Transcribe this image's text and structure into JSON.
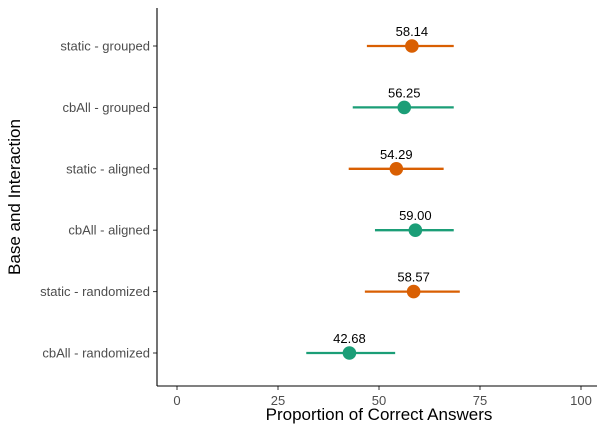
{
  "chart_data": {
    "type": "scatter",
    "subtype": "dot-with-error-bars",
    "orientation": "horizontal",
    "xlabel": "Proportion of Correct Answers",
    "ylabel": "Base and Interaction",
    "xlim": [
      0,
      100
    ],
    "xticks": [
      0,
      25,
      50,
      75,
      100
    ],
    "grid": false,
    "legend": "none",
    "categories": [
      "static - grouped",
      "cbAll - grouped",
      "static - aligned",
      "cbAll - aligned",
      "static - randomized",
      "cbAll - randomized"
    ],
    "points": [
      {
        "category": "static - grouped",
        "base": "static",
        "value": 58.14,
        "lower": 47.0,
        "upper": 68.5,
        "label": "58.14"
      },
      {
        "category": "cbAll - grouped",
        "base": "cbAll",
        "value": 56.25,
        "lower": 43.5,
        "upper": 68.5,
        "label": "56.25"
      },
      {
        "category": "static - aligned",
        "base": "static",
        "value": 54.29,
        "lower": 42.5,
        "upper": 66.0,
        "label": "54.29"
      },
      {
        "category": "cbAll - aligned",
        "base": "cbAll",
        "value": 59.0,
        "lower": 49.0,
        "upper": 68.5,
        "label": "59.00"
      },
      {
        "category": "static - randomized",
        "base": "static",
        "value": 58.57,
        "lower": 46.5,
        "upper": 70.0,
        "label": "58.57"
      },
      {
        "category": "cbAll - randomized",
        "base": "cbAll",
        "value": 42.68,
        "lower": 32.0,
        "upper": 54.0,
        "label": "42.68"
      }
    ],
    "colors": {
      "static": "#d95f02",
      "cbAll": "#1b9e77",
      "axis": "#000000",
      "tick_text": "#4d4d4d"
    }
  }
}
